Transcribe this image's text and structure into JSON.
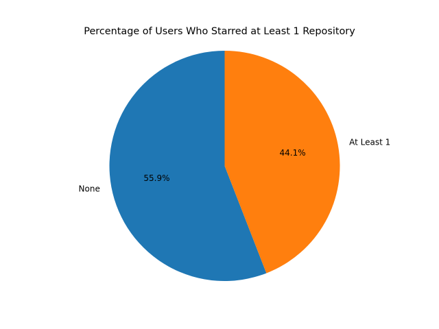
{
  "chart_data": {
    "type": "pie",
    "title": "Percentage of Users Who Starred at Least 1 Repository",
    "labels": [
      "None",
      "At Least 1"
    ],
    "values": [
      55.9,
      44.1
    ],
    "value_labels": [
      "55.9%",
      "44.1%"
    ],
    "colors": [
      "#1f77b4",
      "#ff7f0e"
    ],
    "start_angle_deg": 90,
    "direction": "counterclockwise",
    "legend": "none"
  }
}
